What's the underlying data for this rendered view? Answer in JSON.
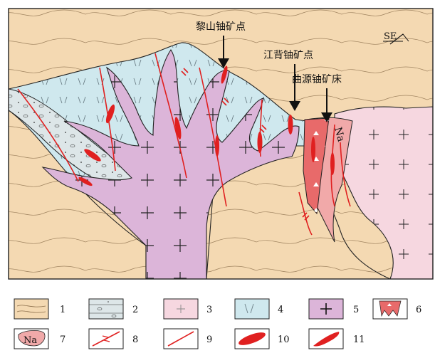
{
  "orientation": {
    "label": "SE"
  },
  "deposits": [
    {
      "name": "黎山铀矿点"
    },
    {
      "name": "江背铀矿点"
    },
    {
      "name": "曲源铀矿床"
    }
  ],
  "na_label": "Na",
  "legend": [
    {
      "num": "1",
      "swatch": "sandstone"
    },
    {
      "num": "2",
      "swatch": "conglomerate"
    },
    {
      "num": "3",
      "swatch": "pink-granite"
    },
    {
      "num": "4",
      "swatch": "blue-volcanic"
    },
    {
      "num": "5",
      "swatch": "purple-granite"
    },
    {
      "num": "6",
      "swatch": "red-breccia"
    },
    {
      "num": "7",
      "swatch": "na-alteration",
      "text": "Na"
    },
    {
      "num": "8",
      "swatch": "fault-arrows"
    },
    {
      "num": "9",
      "swatch": "fault-line"
    },
    {
      "num": "10",
      "swatch": "orebody"
    },
    {
      "num": "11",
      "swatch": "orebody-small"
    }
  ],
  "colors": {
    "sandstone": "#f4d9b2",
    "conglomerate": "#dde6e8",
    "pink_granite": "#f6d7e0",
    "blue_volcanic": "#cfe8ee",
    "purple_granite": "#dcb5d9",
    "breccia": "#e86a6a",
    "na_alteration": "#f1a9a9",
    "fault": "#e02020"
  }
}
